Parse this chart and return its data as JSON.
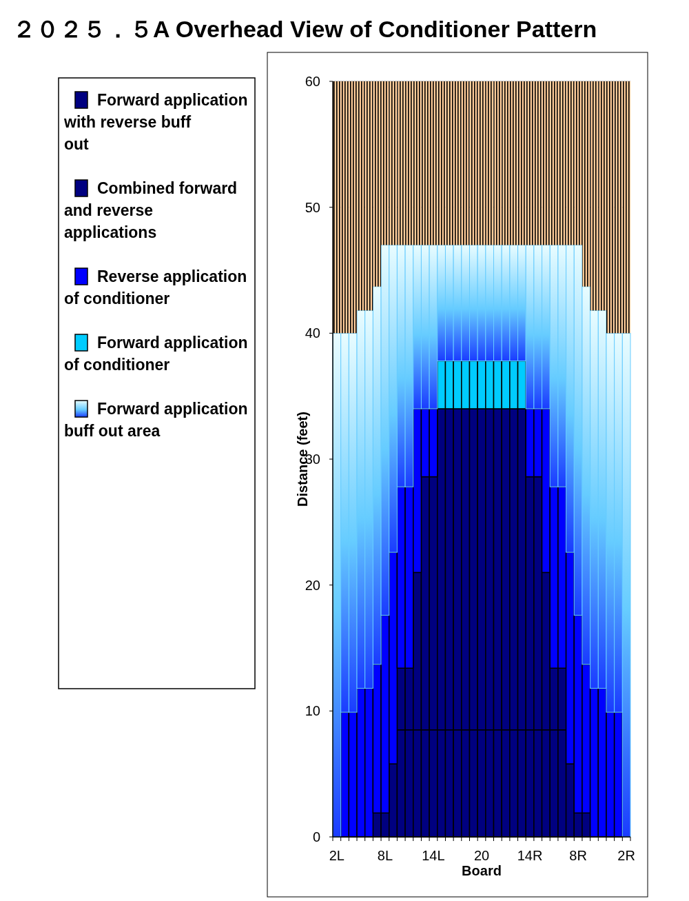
{
  "chart_data": {
    "type": "bar",
    "title": "２０２５．５A Overhead View of Conditioner Pattern",
    "xlabel": "Board",
    "ylabel": "Distance (feet)",
    "categories": [
      "2L",
      null,
      null,
      null,
      null,
      null,
      "8L",
      null,
      null,
      null,
      null,
      null,
      "14L",
      null,
      null,
      null,
      null,
      null,
      "20",
      null,
      null,
      null,
      null,
      null,
      "14R",
      null,
      null,
      null,
      null,
      null,
      "8R",
      null,
      null,
      null,
      null,
      null,
      "2R"
    ],
    "stacked": true,
    "ylim": [
      0,
      60
    ],
    "yticks": [
      0,
      10,
      20,
      30,
      40,
      50,
      60
    ],
    "grid": "y",
    "legend": "left",
    "series": [
      {
        "name": "Forward application with reverse buff out",
        "color": "#000080",
        "values": [
          0,
          0,
          0,
          0,
          0,
          1.9,
          1.9,
          5.8,
          8.5,
          8.5,
          8.5,
          8.5,
          8.5,
          8.5,
          8.5,
          8.5,
          8.5,
          8.5,
          8.5,
          8.5,
          8.5,
          8.5,
          8.5,
          8.5,
          8.5,
          8.5,
          8.5,
          8.5,
          8.5,
          5.8,
          1.9,
          1.9,
          0,
          0,
          0,
          0,
          0
        ]
      },
      {
        "name": "Combined forward and reverse applications",
        "color": "#000080",
        "values": [
          0,
          0,
          0,
          0,
          0,
          0,
          0,
          0,
          4.9,
          4.9,
          12.5,
          20.1,
          20.1,
          25.5,
          25.5,
          25.5,
          25.5,
          25.5,
          25.5,
          25.5,
          25.5,
          25.5,
          25.5,
          25.5,
          20.1,
          20.1,
          12.5,
          4.9,
          4.9,
          0,
          0,
          0,
          0,
          0,
          0,
          0,
          0
        ]
      },
      {
        "name": "Reverse application of conditioner",
        "color": "#0000ff",
        "values": [
          0,
          9.9,
          9.9,
          11.8,
          11.8,
          11.8,
          15.7,
          16.8,
          14.4,
          14.4,
          13,
          5.4,
          5.4,
          0,
          0,
          0,
          0,
          0,
          0,
          0,
          0,
          0,
          0,
          0,
          5.4,
          5.4,
          13,
          14.4,
          14.4,
          16.8,
          15.7,
          11.8,
          11.8,
          11.8,
          9.9,
          9.9,
          0
        ]
      },
      {
        "name": "Forward application of conditioner",
        "color": "#00ccff",
        "values": [
          0,
          0,
          0,
          0,
          0,
          0,
          0,
          0,
          0,
          0,
          0,
          0,
          0,
          3.8,
          3.8,
          3.8,
          3.8,
          3.8,
          3.8,
          3.8,
          3.8,
          3.8,
          3.8,
          3.8,
          0,
          0,
          0,
          0,
          0,
          0,
          0,
          0,
          0,
          0,
          0,
          0,
          0
        ]
      },
      {
        "name": "Forward application buff out area",
        "color": "#66ccff",
        "values": [
          40,
          30.1,
          30.1,
          30,
          30,
          30,
          29.4,
          24.4,
          19.2,
          19.2,
          13,
          13,
          13,
          9.2,
          9.2,
          9.2,
          9.2,
          9.2,
          9.2,
          9.2,
          9.2,
          9.2,
          9.2,
          9.2,
          13,
          13,
          13,
          19.2,
          19.2,
          24.4,
          29.4,
          30,
          30,
          30,
          30.1,
          30.1,
          40
        ]
      },
      {
        "color": "#ffcc99",
        "values": [
          20,
          20,
          20,
          18.2,
          18.2,
          16.3,
          13,
          13,
          13,
          13,
          13,
          13,
          13,
          13,
          13,
          13,
          13,
          13,
          13,
          13,
          13,
          13,
          13,
          13,
          13,
          13,
          13,
          13,
          13,
          13,
          13,
          16.3,
          18.2,
          18.2,
          20,
          20,
          20
        ]
      }
    ]
  }
}
